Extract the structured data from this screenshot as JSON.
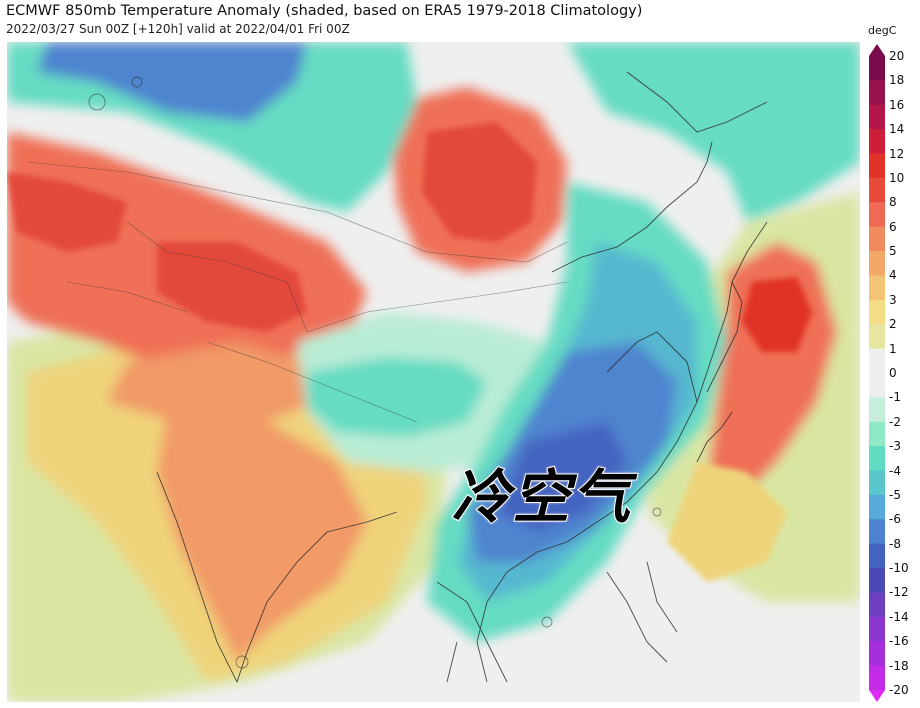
{
  "header": {
    "title": "ECMWF 850mb Temperature Anomaly (shaded, based on ERA5 1979-2018 Climatology)",
    "subtitle": "2022/03/27 Sun 00Z [+120h] valid at 2022/04/01 Fri 00Z"
  },
  "annotation": {
    "text": "冷空气"
  },
  "colorbar": {
    "unit": "degC",
    "ticks": [
      "20",
      "18",
      "16",
      "14",
      "12",
      "10",
      "8",
      "6",
      "5",
      "4",
      "3",
      "2",
      "1",
      "0",
      "-1",
      "-2",
      "-3",
      "-4",
      "-5",
      "-6",
      "-8",
      "-10",
      "-12",
      "-14",
      "-16",
      "-18",
      "-20"
    ],
    "colors": [
      "#7a0b4d",
      "#97124e",
      "#b3164a",
      "#cc1f3a",
      "#e03228",
      "#e84a3c",
      "#ef6a55",
      "#f08b60",
      "#f3a86a",
      "#f4c476",
      "#f2dc86",
      "#e7e6a0",
      "#eeeeee",
      "#eeeeee",
      "#c6eedb",
      "#8fe9c4",
      "#5fdcc1",
      "#58c6cc",
      "#56a9d8",
      "#4c82cf",
      "#4263c0",
      "#4b4ab5",
      "#6d3fc0",
      "#8b37cf",
      "#a52fdc",
      "#c22be8",
      "#dd2cf2"
    ]
  },
  "map_colors": {
    "warm_strong": "#e34a3a",
    "warm": "#ef6f57",
    "warm_light": "#f29a68",
    "yellow": "#efd37a",
    "green_light": "#d9e6a3",
    "neutral": "#efefef",
    "cool_light": "#b9ecd6",
    "cool": "#66dcc3",
    "cool_mid": "#57b8d0",
    "cold": "#4f84cf",
    "cold_strong": "#4464c0",
    "border": "#2b2b2b"
  }
}
